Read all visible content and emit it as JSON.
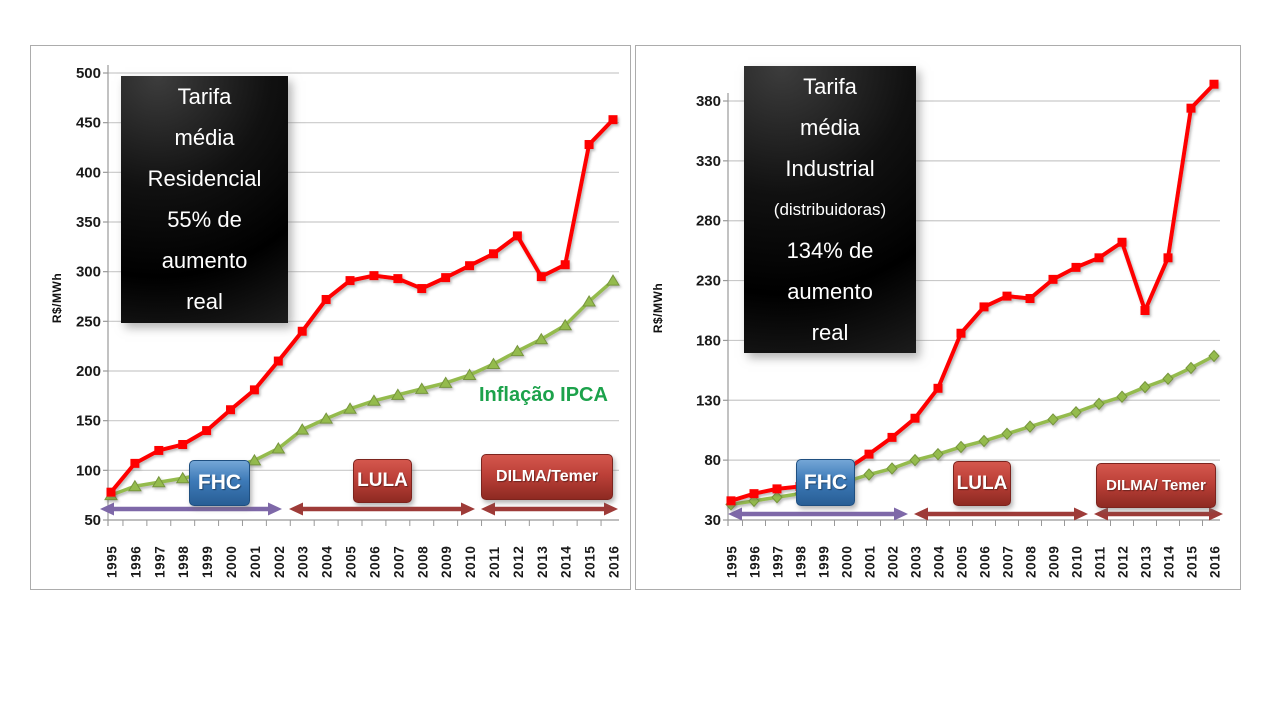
{
  "slide": {
    "background": "#FFFFFF"
  },
  "colors": {
    "red_series": "#FE0000",
    "green_series": "#94BB4D",
    "green_marker_edge": "#76953C",
    "purple_arrow": "#7E68A8",
    "dark_red_arrow": "#9E3B38",
    "grid_line": "#C9C9C9",
    "axis_line": "#999999",
    "tick_text": "#1A1A1A",
    "fhc_box_blue": "#3D7AB8",
    "era_box_red": "#BC4038",
    "callout_bg": "#000000",
    "callout_text": "#FFFFFF",
    "ipca_label_green": "#1CA24B"
  },
  "chart_data": [
    {
      "type": "line",
      "title_lines": [
        "Tarifa",
        "média",
        "Residencial",
        "55% de",
        "aumento",
        "real"
      ],
      "title_text": "Tarifa média Residencial 55% de aumento real",
      "ylabel": "R$/MWh",
      "ylim": [
        50,
        500
      ],
      "yticks": [
        50,
        100,
        150,
        200,
        250,
        300,
        350,
        400,
        450,
        500
      ],
      "grid": true,
      "legend": "none",
      "x_years": [
        "1995",
        "1996",
        "1997",
        "1998",
        "1999",
        "2000",
        "2001",
        "2002",
        "2003",
        "2004",
        "2005",
        "2006",
        "2007",
        "2008",
        "2009",
        "2010",
        "2011",
        "2012",
        "2013",
        "2014",
        "2015",
        "2016"
      ],
      "series": [
        {
          "name": "Tarifa média Residencial",
          "color_key": "red_series",
          "marker": "square",
          "values": [
            78,
            107,
            120,
            126,
            140,
            161,
            181,
            210,
            240,
            272,
            291,
            296,
            293,
            283,
            294,
            306,
            318,
            336,
            295,
            307,
            428,
            453
          ]
        },
        {
          "name": "Inflação IPCA",
          "color_key": "green_series",
          "marker": "triangle",
          "values": [
            75,
            84,
            88,
            92,
            97,
            103,
            110,
            122,
            141,
            152,
            162,
            170,
            176,
            182,
            188,
            196,
            207,
            220,
            232,
            246,
            270,
            291
          ]
        }
      ],
      "series_label": "Inflação IPCA",
      "eras": [
        {
          "label": "FHC",
          "span_years": [
            1995,
            2002
          ],
          "arrow": "purple"
        },
        {
          "label": "LULA",
          "span_years": [
            2003,
            2010
          ],
          "arrow": "dark_red"
        },
        {
          "label": "DILMA/Temer",
          "span_years": [
            2011,
            2016
          ],
          "arrow": "dark_red"
        }
      ]
    },
    {
      "type": "line",
      "title_lines": [
        "Tarifa",
        "média",
        "Industrial",
        "(distribuidoras)",
        "134% de",
        "aumento",
        "real"
      ],
      "title_text": "Tarifa média Industrial (distribuidoras) 134% de aumento real",
      "ylabel": "R$/MWh",
      "ylim": [
        30,
        380
      ],
      "yticks": [
        30,
        80,
        130,
        180,
        230,
        280,
        330,
        380
      ],
      "grid": true,
      "legend": "none",
      "x_years": [
        "1995",
        "1996",
        "1997",
        "1998",
        "1999",
        "2000",
        "2001",
        "2002",
        "2003",
        "2004",
        "2005",
        "2006",
        "2007",
        "2008",
        "2009",
        "2010",
        "2011",
        "2012",
        "2013",
        "2014",
        "2015",
        "2016"
      ],
      "series": [
        {
          "name": "Tarifa média Industrial (distribuidoras)",
          "color_key": "red_series",
          "marker": "square",
          "values": [
            46,
            52,
            56,
            58,
            63,
            72,
            85,
            99,
            115,
            140,
            186,
            208,
            217,
            215,
            231,
            241,
            249,
            262,
            205,
            249,
            374,
            394
          ]
        },
        {
          "name": "Inflação IPCA",
          "color_key": "green_series",
          "marker": "diamond",
          "values": [
            43,
            46,
            49,
            52,
            56,
            62,
            68,
            73,
            80,
            85,
            91,
            96,
            102,
            108,
            114,
            120,
            127,
            133,
            141,
            148,
            157,
            167
          ]
        }
      ],
      "eras": [
        {
          "label": "FHC",
          "span_years": [
            1995,
            2002
          ],
          "arrow": "purple"
        },
        {
          "label": "LULA",
          "span_years": [
            2003,
            2010
          ],
          "arrow": "dark_red"
        },
        {
          "label": "DILMA/ Temer",
          "span_years": [
            2011,
            2016
          ],
          "arrow": "dark_red"
        }
      ]
    }
  ]
}
